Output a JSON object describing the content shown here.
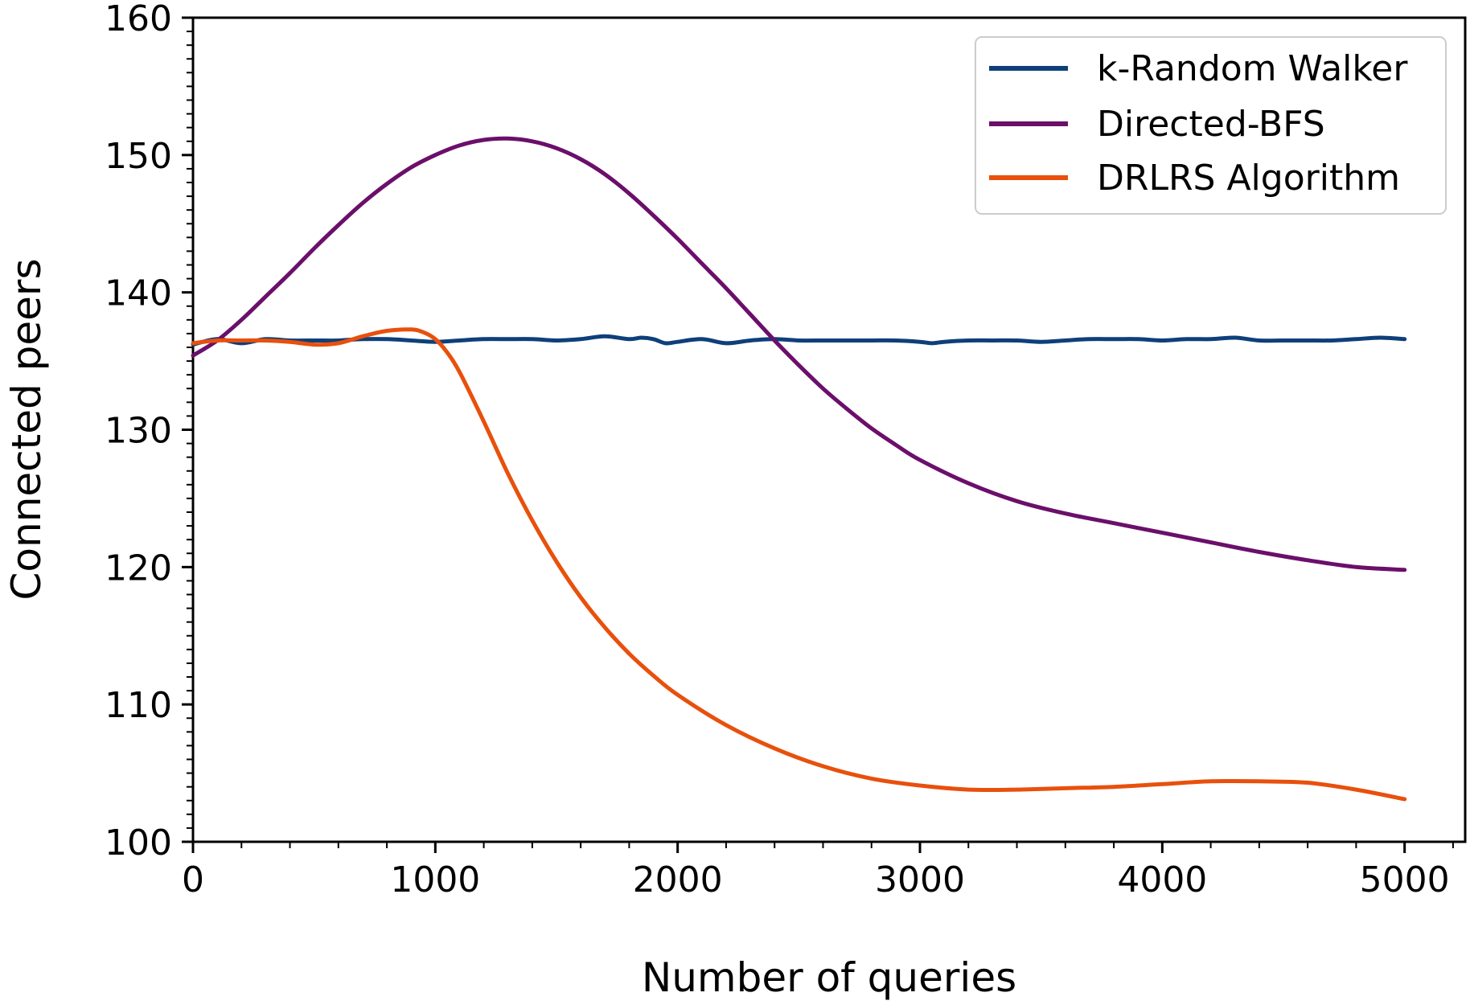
{
  "chart_data": {
    "type": "line",
    "title": "",
    "xlabel": "Number of queries",
    "ylabel": "Connected peers",
    "xlim": [
      0,
      5250
    ],
    "ylim": [
      100,
      160
    ],
    "xticks": [
      0,
      1000,
      2000,
      3000,
      4000,
      5000
    ],
    "yticks": [
      100,
      110,
      120,
      130,
      140,
      150,
      160
    ],
    "grid": false,
    "legend_position": "top-right",
    "series": [
      {
        "name": "k-Random Walker",
        "color": "#0e3f7a",
        "x": [
          0,
          100,
          200,
          300,
          400,
          500,
          600,
          700,
          800,
          900,
          1000,
          1100,
          1200,
          1300,
          1400,
          1500,
          1600,
          1700,
          1800,
          1850,
          1900,
          1950,
          2000,
          2100,
          2200,
          2300,
          2400,
          2500,
          2600,
          2700,
          2800,
          2900,
          3000,
          3050,
          3100,
          3200,
          3300,
          3400,
          3500,
          3600,
          3700,
          3800,
          3900,
          4000,
          4100,
          4200,
          4300,
          4400,
          4500,
          4600,
          4700,
          4800,
          4900,
          5000
        ],
        "values": [
          136.2,
          136.6,
          136.3,
          136.6,
          136.5,
          136.5,
          136.5,
          136.6,
          136.6,
          136.5,
          136.4,
          136.5,
          136.6,
          136.6,
          136.6,
          136.5,
          136.6,
          136.8,
          136.6,
          136.7,
          136.6,
          136.3,
          136.4,
          136.6,
          136.3,
          136.5,
          136.6,
          136.5,
          136.5,
          136.5,
          136.5,
          136.5,
          136.4,
          136.3,
          136.4,
          136.5,
          136.5,
          136.5,
          136.4,
          136.5,
          136.6,
          136.6,
          136.6,
          136.5,
          136.6,
          136.6,
          136.7,
          136.5,
          136.5,
          136.5,
          136.5,
          136.6,
          136.7,
          136.6
        ]
      },
      {
        "name": "Directed-BFS",
        "color": "#6b0f6b",
        "x": [
          0,
          100,
          200,
          300,
          400,
          500,
          600,
          700,
          800,
          900,
          1000,
          1100,
          1200,
          1300,
          1400,
          1500,
          1600,
          1700,
          1800,
          1900,
          2000,
          2100,
          2200,
          2300,
          2400,
          2500,
          2600,
          2700,
          2800,
          2900,
          3000,
          3200,
          3400,
          3600,
          3800,
          4000,
          4200,
          4400,
          4600,
          4800,
          5000
        ],
        "values": [
          135.4,
          136.5,
          138.0,
          139.7,
          141.4,
          143.2,
          144.9,
          146.5,
          147.9,
          149.1,
          150.0,
          150.7,
          151.1,
          151.2,
          151.0,
          150.5,
          149.7,
          148.6,
          147.2,
          145.6,
          143.9,
          142.1,
          140.3,
          138.4,
          136.5,
          134.7,
          133.0,
          131.5,
          130.1,
          128.9,
          127.8,
          126.1,
          124.8,
          123.9,
          123.2,
          122.5,
          121.8,
          121.1,
          120.5,
          120.0,
          119.8
        ]
      },
      {
        "name": "DRLRS Algorithm",
        "color": "#e8500c",
        "x": [
          0,
          100,
          200,
          300,
          400,
          500,
          600,
          700,
          800,
          900,
          950,
          1000,
          1050,
          1100,
          1200,
          1300,
          1400,
          1500,
          1600,
          1700,
          1800,
          1900,
          2000,
          2200,
          2400,
          2600,
          2800,
          3000,
          3200,
          3400,
          3600,
          3800,
          4000,
          4200,
          4400,
          4600,
          4800,
          5000
        ],
        "values": [
          136.3,
          136.5,
          136.5,
          136.5,
          136.4,
          136.2,
          136.3,
          136.8,
          137.2,
          137.3,
          137.1,
          136.6,
          135.6,
          134.2,
          130.6,
          126.8,
          123.4,
          120.4,
          117.8,
          115.6,
          113.7,
          112.1,
          110.7,
          108.5,
          106.8,
          105.5,
          104.6,
          104.1,
          103.8,
          103.8,
          103.9,
          104.0,
          104.2,
          104.4,
          104.4,
          104.3,
          103.8,
          103.1
        ]
      }
    ]
  }
}
